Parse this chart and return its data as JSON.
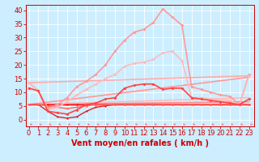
{
  "xlabel": "Vent moyen/en rafales ( km/h )",
  "background_color": "#cceeff",
  "grid_color": "#ffffff",
  "x_ticks": [
    0,
    1,
    2,
    3,
    4,
    5,
    6,
    7,
    8,
    9,
    10,
    11,
    12,
    13,
    14,
    15,
    16,
    17,
    18,
    19,
    20,
    21,
    22,
    23
  ],
  "y_ticks": [
    0,
    5,
    10,
    15,
    20,
    25,
    30,
    35,
    40
  ],
  "ylim": [
    -2.5,
    42
  ],
  "xlim": [
    -0.3,
    23.5
  ],
  "lines": [
    {
      "x": [
        0,
        1,
        2,
        3,
        4,
        5,
        6,
        7,
        8,
        9,
        10,
        11,
        12,
        13,
        14,
        15,
        16,
        17,
        18,
        19,
        20,
        21,
        22,
        23
      ],
      "y": [
        5.5,
        5.5,
        5.5,
        5.5,
        5.5,
        5.5,
        5.5,
        5.5,
        5.5,
        5.5,
        5.5,
        5.5,
        5.5,
        5.5,
        5.5,
        5.5,
        5.5,
        5.5,
        5.5,
        5.5,
        5.5,
        5.5,
        5.5,
        5.5
      ],
      "color": "#ff0000",
      "lw": 1.0,
      "marker": "D",
      "ms": 1.5,
      "zorder": 3
    },
    {
      "x": [
        0,
        23
      ],
      "y": [
        13.5,
        16.0
      ],
      "color": "#ffaaaa",
      "lw": 1.2,
      "marker": null,
      "ms": 0,
      "zorder": 2
    },
    {
      "x": [
        0,
        23
      ],
      "y": [
        5.5,
        15.5
      ],
      "color": "#ff9999",
      "lw": 1.2,
      "marker": null,
      "ms": 0,
      "zorder": 2
    },
    {
      "x": [
        0,
        23
      ],
      "y": [
        5.5,
        8.0
      ],
      "color": "#ffbbbb",
      "lw": 1.2,
      "marker": null,
      "ms": 0,
      "zorder": 2
    },
    {
      "x": [
        0,
        23
      ],
      "y": [
        5.5,
        6.5
      ],
      "color": "#ff8888",
      "lw": 1.2,
      "marker": null,
      "ms": 0,
      "zorder": 2
    },
    {
      "x": [
        0,
        1,
        2,
        3,
        4,
        5,
        6,
        7,
        8,
        9,
        10,
        11,
        12,
        13,
        14,
        15,
        16,
        17,
        18,
        19,
        20,
        21,
        22,
        23
      ],
      "y": [
        13.5,
        10.5,
        4.0,
        5.5,
        8.0,
        12.0,
        14.0,
        16.5,
        20.0,
        25.0,
        29.0,
        32.0,
        33.0,
        35.5,
        40.5,
        37.5,
        34.5,
        12.0,
        11.0,
        10.0,
        9.0,
        8.5,
        5.5,
        16.5
      ],
      "color": "#ff9999",
      "lw": 1.2,
      "marker": "D",
      "ms": 2.0,
      "zorder": 4
    },
    {
      "x": [
        0,
        1,
        2,
        3,
        4,
        5,
        6,
        7,
        8,
        9,
        10,
        11,
        12,
        13,
        14,
        15,
        16,
        17,
        18,
        19,
        20,
        21,
        22,
        23
      ],
      "y": [
        13.5,
        10.5,
        3.5,
        4.5,
        6.5,
        9.0,
        11.0,
        13.0,
        15.0,
        16.5,
        19.5,
        20.5,
        21.0,
        22.0,
        24.5,
        25.0,
        21.5,
        8.0,
        8.0,
        7.5,
        7.0,
        7.0,
        5.5,
        16.0
      ],
      "color": "#ffbbbb",
      "lw": 1.2,
      "marker": "D",
      "ms": 2.0,
      "zorder": 4
    },
    {
      "x": [
        0,
        1,
        2,
        3,
        4,
        5,
        6,
        7,
        8,
        9,
        10,
        11,
        12,
        13,
        14,
        15,
        16,
        17,
        18,
        19,
        20,
        21,
        22,
        23
      ],
      "y": [
        11.5,
        10.5,
        3.0,
        2.5,
        2.0,
        3.5,
        5.5,
        6.0,
        7.5,
        8.0,
        11.5,
        12.5,
        13.0,
        13.0,
        11.0,
        11.5,
        11.5,
        8.0,
        7.5,
        7.0,
        6.5,
        6.0,
        5.5,
        7.5
      ],
      "color": "#ff4444",
      "lw": 1.2,
      "marker": "D",
      "ms": 2.0,
      "zorder": 4
    },
    {
      "x": [
        0,
        1,
        2,
        3,
        4,
        5,
        6,
        7,
        8,
        9,
        10,
        11,
        12,
        13,
        14,
        15,
        16,
        17,
        18,
        19,
        20,
        21,
        22,
        23
      ],
      "y": [
        5.5,
        5.5,
        3.0,
        1.0,
        0.5,
        1.0,
        3.0,
        4.5,
        5.0,
        5.5,
        5.5,
        5.5,
        5.5,
        5.5,
        5.5,
        5.5,
        5.5,
        5.5,
        5.5,
        5.5,
        5.5,
        5.5,
        5.5,
        5.5
      ],
      "color": "#dd2222",
      "lw": 1.0,
      "marker": "D",
      "ms": 1.5,
      "zorder": 3
    },
    {
      "x": [
        0,
        1,
        2,
        3,
        4,
        5,
        6,
        7,
        8,
        9,
        10,
        11,
        12,
        13,
        14,
        15,
        16,
        17,
        18,
        19,
        20,
        21,
        22,
        23
      ],
      "y": [
        5.5,
        5.5,
        5.0,
        4.5,
        4.0,
        4.5,
        5.0,
        5.5,
        5.5,
        5.5,
        5.5,
        5.5,
        5.5,
        5.5,
        5.5,
        5.5,
        5.5,
        5.5,
        5.5,
        5.5,
        5.5,
        5.5,
        5.5,
        5.5
      ],
      "color": "#ff6666",
      "lw": 1.0,
      "marker": "D",
      "ms": 1.5,
      "zorder": 3
    }
  ],
  "arrow_color": "#ff6666",
  "xlabel_color": "#cc0000",
  "xlabel_fontsize": 7,
  "tick_color": "#cc0000",
  "tick_fontsize": 6,
  "spine_color": "#cc0000"
}
